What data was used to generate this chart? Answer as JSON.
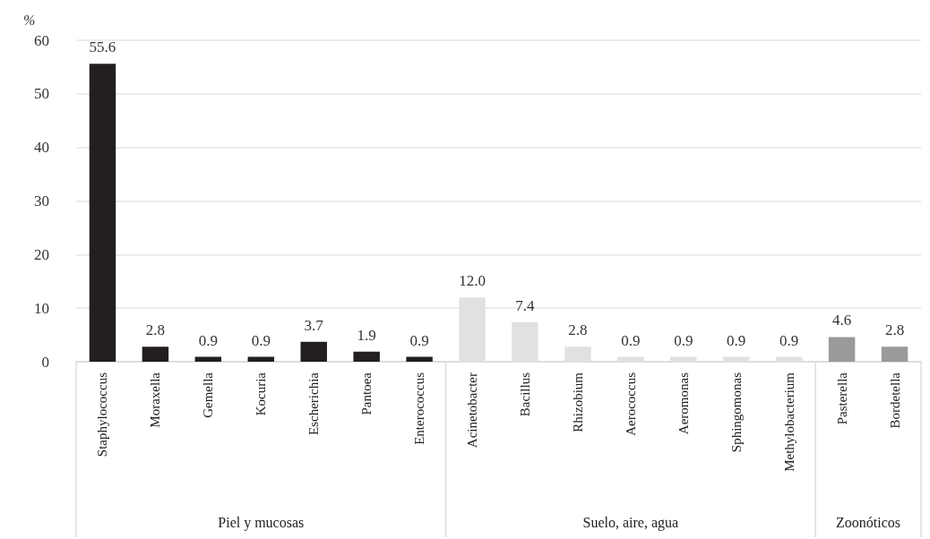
{
  "chart_data": {
    "type": "bar",
    "ylabel": "%",
    "categories": [
      "Staphylococcus",
      "Moraxella",
      "Gemella",
      "Kocuria",
      "Escherichia",
      "Pantoea",
      "Enterococcus",
      "Acinetobacter",
      "Bacillus",
      "Rhizobium",
      "Aerococcus",
      "Aeromonas",
      "Sphingomonas",
      "Methylobacterium",
      "Pasterella",
      "Bordetella"
    ],
    "series": [
      {
        "color": "#231f20",
        "values": [
          55.6,
          2.8,
          0.9,
          0.9,
          3.7,
          1.9,
          0.9,
          null,
          null,
          null,
          null,
          null,
          null,
          null,
          null,
          null
        ],
        "value_labels": [
          "55.6",
          "2.8",
          "0.9",
          "0.9",
          "3.7",
          "1.9",
          "0.9",
          null,
          null,
          null,
          null,
          null,
          null,
          null,
          null,
          null
        ]
      },
      {
        "color": "#e0e1e3",
        "values": [
          null,
          null,
          null,
          null,
          null,
          null,
          null,
          12.0,
          7.4,
          2.8,
          0.9,
          0.9,
          0.9,
          0.9,
          null,
          null
        ],
        "value_labels": [
          null,
          null,
          null,
          null,
          null,
          null,
          null,
          "12.0",
          "7.4",
          "2.8",
          "0.9",
          "0.9",
          "0.9",
          "0.9",
          null,
          null
        ]
      },
      {
        "color": "#9a9a9a",
        "values": [
          null,
          null,
          null,
          null,
          null,
          null,
          null,
          null,
          null,
          null,
          null,
          null,
          null,
          null,
          4.6,
          2.8
        ],
        "value_labels": [
          null,
          null,
          null,
          null,
          null,
          null,
          null,
          null,
          null,
          null,
          null,
          null,
          null,
          null,
          "4.6",
          "2.8"
        ]
      }
    ],
    "annotations": [
      "Piel y mucosas",
      "Suelo, aire, agua",
      "Zoonóticos"
    ],
    "ylim": [
      0,
      60
    ],
    "yticks": [
      0,
      10,
      20,
      30,
      40,
      50,
      60
    ],
    "grid": "y"
  }
}
